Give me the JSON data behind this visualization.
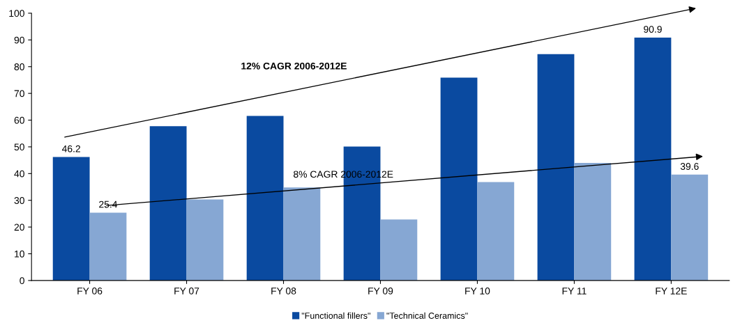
{
  "chart_data": {
    "type": "bar",
    "categories": [
      "FY 06",
      "FY 07",
      "FY 08",
      "FY 09",
      "FY 10",
      "FY 11",
      "FY 12E"
    ],
    "series": [
      {
        "name": "\"Functional fillers\"",
        "color": "#0a4aa0",
        "values": [
          46.2,
          57.7,
          61.6,
          50.1,
          75.9,
          84.7,
          90.9
        ],
        "value_labels": [
          "46.2",
          null,
          null,
          null,
          null,
          null,
          "90.9"
        ]
      },
      {
        "name": "\"Technical Ceramics\"",
        "color": "#86a7d3",
        "values": [
          25.4,
          30.3,
          34.8,
          22.8,
          36.8,
          44.0,
          39.6
        ],
        "value_labels": [
          "25.4",
          null,
          null,
          null,
          null,
          null,
          "39.6"
        ]
      }
    ],
    "annotations": [
      "12% CAGR 2006-2012E",
      "8% CAGR 2006-2012E"
    ],
    "ylim": [
      0,
      100
    ],
    "yticks": [
      0,
      10,
      20,
      30,
      40,
      50,
      60,
      70,
      80,
      90,
      100
    ],
    "grid": false,
    "legend": "bottom"
  }
}
